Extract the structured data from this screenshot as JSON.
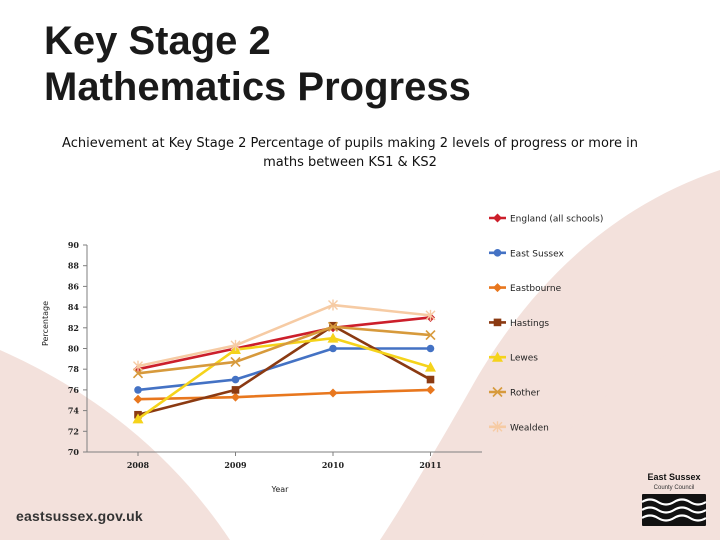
{
  "page": {
    "title_line1": "Key Stage 2",
    "title_line2": "Mathematics Progress",
    "subtitle": "Achievement at Key Stage 2 Percentage of pupils making 2 levels of progress or more in maths between KS1 & KS2",
    "footer_url": "eastsussex.gov.uk",
    "logo_line1": "East Sussex",
    "logo_line2": "County Council"
  },
  "colors": {
    "swoosh": "#f3e1dc",
    "text": "#1a1a1a"
  },
  "chart_data": {
    "type": "line",
    "x": [
      "2008",
      "2009",
      "2010",
      "2011"
    ],
    "xlabel": "Year",
    "ylabel": "Percentage",
    "ylim": [
      70,
      90
    ],
    "yticks": [
      70,
      72,
      74,
      76,
      78,
      80,
      82,
      84,
      86,
      88,
      90
    ],
    "grid": false,
    "legend_position": "right",
    "series": [
      {
        "name": "England (all schools)",
        "color": "#cc1f2b",
        "marker": "diamond",
        "values": [
          78,
          80,
          82,
          83
        ]
      },
      {
        "name": "East Sussex",
        "color": "#4472c4",
        "marker": "circle",
        "values": [
          76,
          77,
          80,
          80
        ]
      },
      {
        "name": "Eastbourne",
        "color": "#e8771e",
        "marker": "diamond",
        "values": [
          75.1,
          75.3,
          75.7,
          76
        ]
      },
      {
        "name": "Hastings",
        "color": "#8b3a12",
        "marker": "square",
        "values": [
          73.6,
          76,
          82.2,
          77
        ]
      },
      {
        "name": "Lewes",
        "color": "#f5d31b",
        "marker": "triangle",
        "values": [
          73.2,
          79.9,
          81,
          78.2
        ]
      },
      {
        "name": "Rother",
        "color": "#d79a3c",
        "marker": "x",
        "values": [
          77.6,
          78.7,
          82.1,
          81.3
        ]
      },
      {
        "name": "Wealden",
        "color": "#f6cba4",
        "marker": "star",
        "values": [
          78.3,
          80.3,
          84.2,
          83.2
        ]
      }
    ]
  }
}
